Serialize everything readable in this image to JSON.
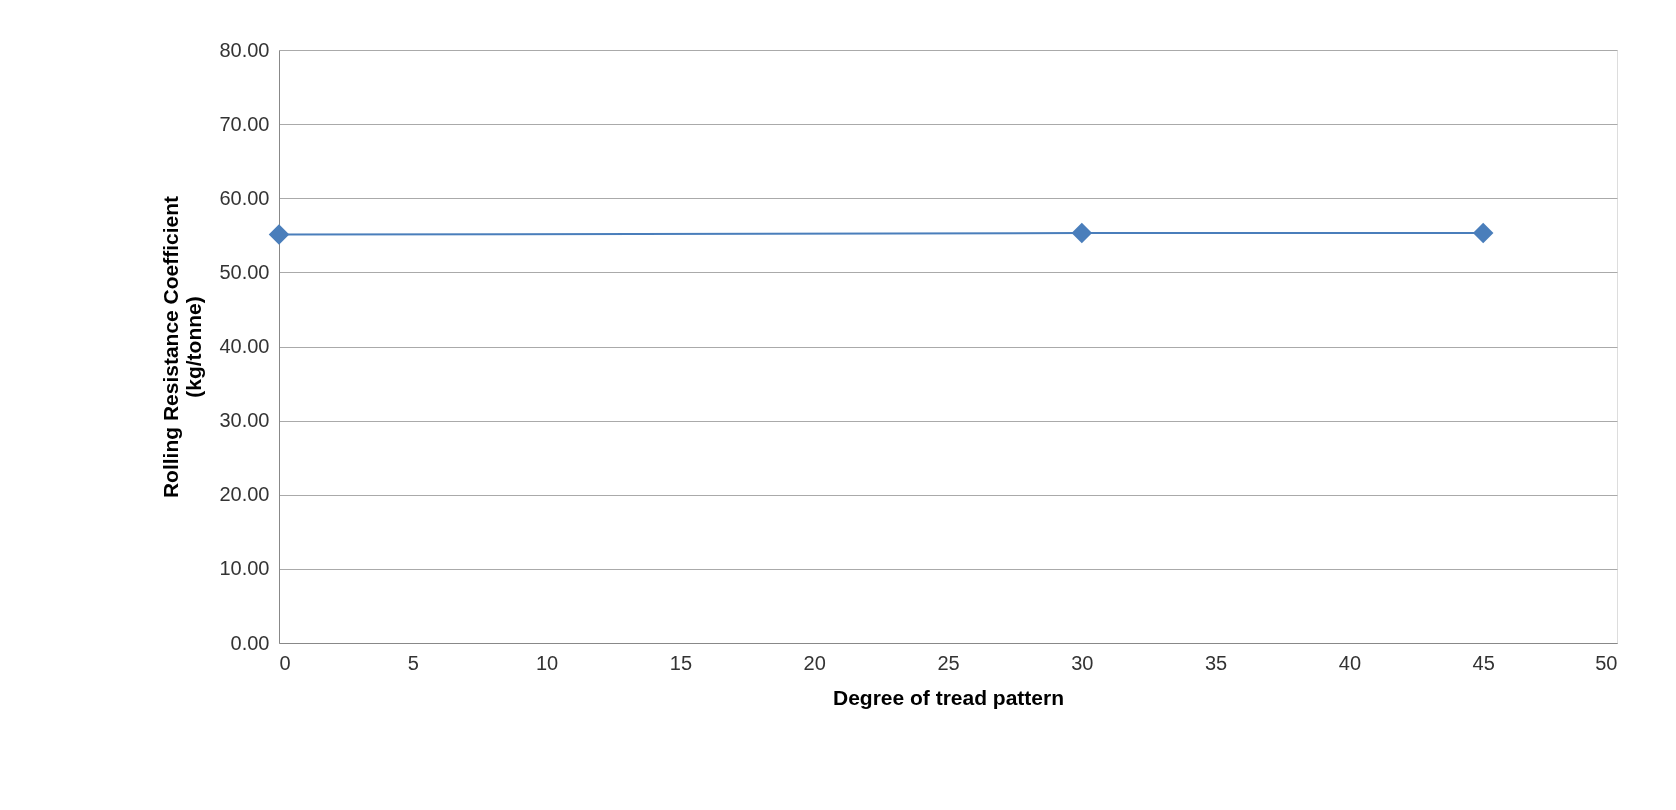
{
  "chart_data": {
    "type": "line",
    "xlabel": "Degree of tread pattern",
    "ylabel": "Rolling Resistance Coefficient\n(kg/tonne)",
    "x": [
      0,
      30,
      45
    ],
    "series": [
      {
        "color": "#4a7ebb",
        "values": [
          55.1,
          55.3,
          55.3
        ]
      }
    ],
    "xlim": [
      0,
      50
    ],
    "xticks": [
      0,
      5,
      10,
      15,
      20,
      25,
      30,
      35,
      40,
      45,
      50
    ],
    "ylim": [
      0,
      80
    ],
    "yticks": [
      {
        "value": 0,
        "label": "0.00"
      },
      {
        "value": 10,
        "label": "10.00"
      },
      {
        "value": 20,
        "label": "20.00"
      },
      {
        "value": 30,
        "label": "30.00"
      },
      {
        "value": 40,
        "label": "40.00"
      },
      {
        "value": 50,
        "label": "50.00"
      },
      {
        "value": 60,
        "label": "60.00"
      },
      {
        "value": 70,
        "label": "70.00"
      },
      {
        "value": 80,
        "label": "80.00"
      }
    ],
    "grid": "y",
    "marker": "diamond",
    "line_style": "solid"
  }
}
